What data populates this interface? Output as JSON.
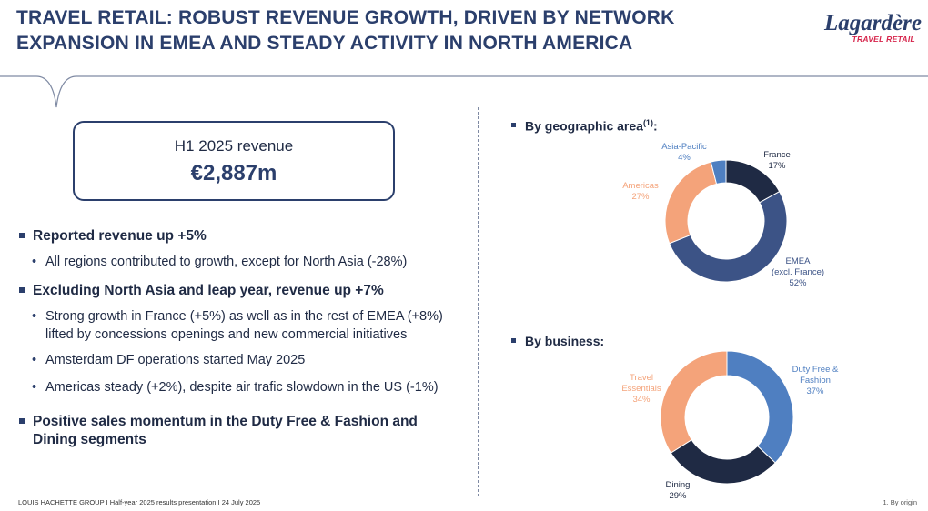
{
  "header": {
    "title_line1": "TRAVEL RETAIL: ROBUST REVENUE GROWTH, DRIVEN BY NETWORK",
    "title_line2": "EXPANSION IN EMEA AND STEADY ACTIVITY IN NORTH AMERICA",
    "logo_brand": "Lagardère",
    "logo_sub": "TRAVEL RETAIL"
  },
  "kpi": {
    "label": "H1 2025 revenue",
    "value": "€2,887m"
  },
  "bullets": [
    {
      "text": "Reported revenue up +5%",
      "level": 1
    },
    {
      "text": "All regions contributed to growth, except for North Asia (-28%)",
      "level": 2
    },
    {
      "text": "Excluding North Asia and leap year, revenue up +7%",
      "level": 1
    },
    {
      "text": "Strong growth in France (+5%) as well as in the rest of EMEA (+8%) lifted by concessions openings and new commercial initiatives",
      "level": 2
    },
    {
      "text": "Amsterdam DF operations started May 2025",
      "level": 2
    },
    {
      "text": "Americas steady (+2%), despite air trafic slowdown in the US (-1%)",
      "level": 2
    },
    {
      "text": "Positive sales momentum in the Duty Free & Fashion and Dining segments",
      "level": 1
    }
  ],
  "sections": {
    "geo_title": "By geographic area",
    "geo_sup": "(1)",
    "geo_colon": ":",
    "business_title": "By business:"
  },
  "colors": {
    "navy": "#1f2a44",
    "blue": "#3c5386",
    "light_blue": "#4f7fc1",
    "orange": "#f4a37a",
    "accent": "#2b3f6c"
  },
  "chart_data": [
    {
      "type": "pie",
      "title": "By geographic area",
      "donut": true,
      "slices": [
        {
          "name": "France",
          "value": 17,
          "label_lines": [
            "France",
            "17%"
          ],
          "color": "#1f2a44"
        },
        {
          "name": "EMEA (excl. France)",
          "value": 52,
          "label_lines": [
            "EMEA",
            "(excl. France)",
            "52%"
          ],
          "color": "#3c5386"
        },
        {
          "name": "Americas",
          "value": 27,
          "label_lines": [
            "Americas",
            "27%"
          ],
          "color": "#f4a37a"
        },
        {
          "name": "Asia-Pacific",
          "value": 4,
          "label_lines": [
            "Asia-Pacific",
            "4%"
          ],
          "color": "#4f7fc1"
        }
      ]
    },
    {
      "type": "pie",
      "title": "By business",
      "donut": true,
      "slices": [
        {
          "name": "Duty Free & Fashion",
          "value": 37,
          "label_lines": [
            "Duty Free &",
            "Fashion",
            "37%"
          ],
          "color": "#4f7fc1"
        },
        {
          "name": "Dining",
          "value": 29,
          "label_lines": [
            "Dining",
            "29%"
          ],
          "color": "#1f2a44"
        },
        {
          "name": "Travel Essentials",
          "value": 34,
          "label_lines": [
            "Travel",
            "Essentials",
            "34%"
          ],
          "color": "#f4a37a"
        }
      ]
    }
  ],
  "footer": {
    "left": "LOUIS HACHETTE GROUP I Half-year 2025 results presentation I 24 July 2025",
    "right": "1. By origin"
  }
}
